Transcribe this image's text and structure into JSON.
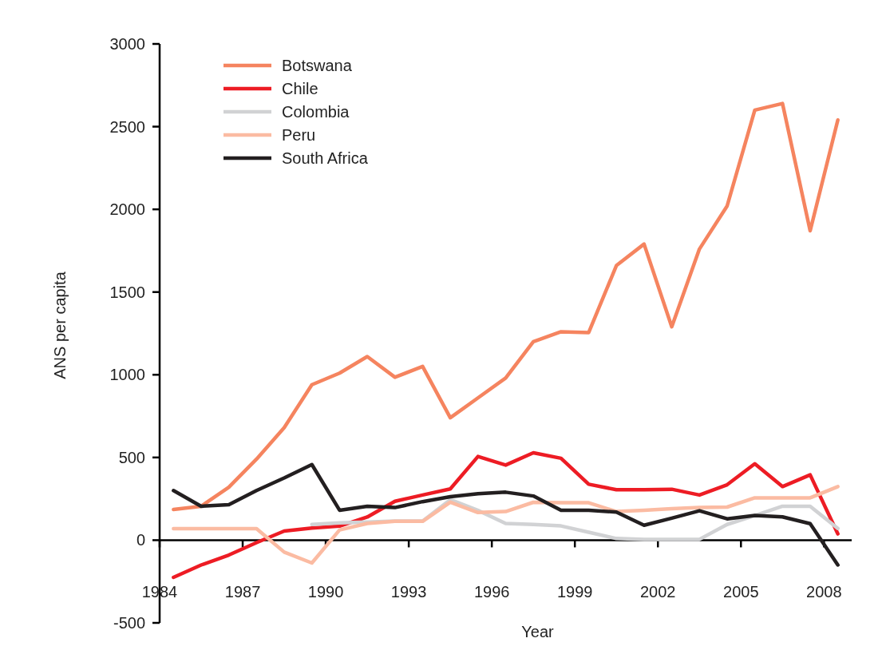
{
  "chart_data": {
    "type": "line",
    "xlabel": "Year",
    "ylabel": "ANS per capita",
    "x": [
      1984.5,
      1985.5,
      1986.5,
      1987.5,
      1988.5,
      1989.5,
      1990.5,
      1991.5,
      1992.5,
      1993.5,
      1994.5,
      1995.5,
      1996.5,
      1997.5,
      1998.5,
      1999.5,
      2000.5,
      2001.5,
      2002.5,
      2003.5,
      2004.5,
      2005.5,
      2006.5,
      2007.5,
      2008.5
    ],
    "series": [
      {
        "name": "Botswana",
        "color": "#f5845f",
        "values": [
          185,
          205,
          320,
          490,
          680,
          940,
          1010,
          1110,
          985,
          1050,
          740,
          860,
          980,
          1200,
          1260,
          1255,
          1660,
          1790,
          1290,
          1760,
          2020,
          2600,
          2640,
          1870,
          2540
        ]
      },
      {
        "name": "Chile",
        "color": "#ed1c24",
        "values": [
          -225,
          -150,
          -90,
          -15,
          55,
          73,
          85,
          140,
          235,
          273,
          310,
          506,
          454,
          528,
          495,
          338,
          305,
          305,
          308,
          273,
          335,
          462,
          324,
          395,
          38
        ]
      },
      {
        "name": "Colombia",
        "color": "#d1d2d4",
        "values": [
          null,
          null,
          null,
          null,
          null,
          95,
          105,
          110,
          115,
          115,
          245,
          180,
          101,
          95,
          86,
          48,
          10,
          5,
          5,
          5,
          95,
          149,
          205,
          205,
          71
        ]
      },
      {
        "name": "Peru",
        "color": "#fbbba2",
        "values": [
          70,
          70,
          70,
          70,
          -72,
          -138,
          62,
          101,
          114,
          114,
          230,
          167,
          173,
          229,
          226,
          226,
          173,
          181,
          190,
          197,
          200,
          256,
          256,
          256,
          324
        ]
      },
      {
        "name": "South Africa",
        "color": "#231f20",
        "values": [
          300,
          205,
          214,
          300,
          376,
          457,
          181,
          205,
          197,
          233,
          263,
          281,
          290,
          267,
          181,
          181,
          170,
          90,
          133,
          178,
          129,
          149,
          141,
          100,
          -150
        ]
      }
    ],
    "xlim": [
      1984,
      2009
    ],
    "xticks": [
      1984,
      1987,
      1990,
      1993,
      1996,
      1999,
      2002,
      2005,
      2008
    ],
    "ylim": [
      -500,
      3000
    ],
    "yticks": [
      -500,
      0,
      500,
      1000,
      1500,
      2000,
      2500,
      3000
    ],
    "legend": "top left",
    "marker": "none",
    "line_style": "solid"
  }
}
